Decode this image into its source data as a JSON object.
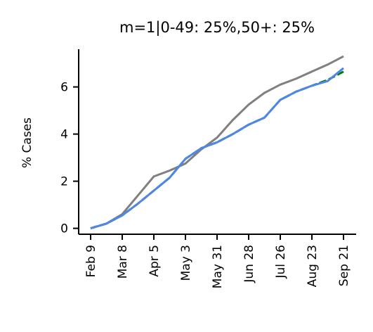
{
  "chart_data": {
    "type": "line",
    "title": "m=1|0-49: 25%,50+: 25%",
    "xlabel": "",
    "ylabel": "% Cases",
    "x_ticks": [
      "Feb 9",
      "Mar 8",
      "Apr 5",
      "May 3",
      "May 31",
      "Jun 28",
      "Jul 26",
      "Aug 23",
      "Sep 21"
    ],
    "y_ticks": [
      "0",
      "2",
      "4",
      "6"
    ],
    "ylim": [
      -0.25,
      7.6
    ],
    "grid": false,
    "legend": "none",
    "x": [
      "Feb 9",
      "Feb 23",
      "Mar 8",
      "Mar 22",
      "Apr 5",
      "Apr 19",
      "May 3",
      "May 17",
      "May 31",
      "Jun 14",
      "Jun 28",
      "Jul 12",
      "Jul 26",
      "Aug 9",
      "Aug 23",
      "Sep 6",
      "Sep 21"
    ],
    "series": [
      {
        "color": "#808080",
        "values": [
          0.0,
          0.2,
          0.6,
          1.4,
          2.2,
          2.45,
          2.75,
          3.35,
          3.85,
          4.6,
          5.25,
          5.75,
          6.1,
          6.35,
          6.65,
          6.95,
          7.3
        ]
      },
      {
        "color": "#008000",
        "dashed": true,
        "values": [
          0.0,
          0.2,
          0.55,
          1.05,
          1.6,
          2.15,
          2.95,
          3.4,
          3.65,
          4.0,
          4.4,
          4.7,
          5.45,
          5.8,
          6.05,
          6.3,
          6.65
        ]
      },
      {
        "color": "#4f86e8",
        "values": [
          0.0,
          0.2,
          0.55,
          1.05,
          1.6,
          2.15,
          2.95,
          3.4,
          3.65,
          4.0,
          4.4,
          4.7,
          5.45,
          5.8,
          6.05,
          6.25,
          6.8
        ]
      }
    ]
  }
}
